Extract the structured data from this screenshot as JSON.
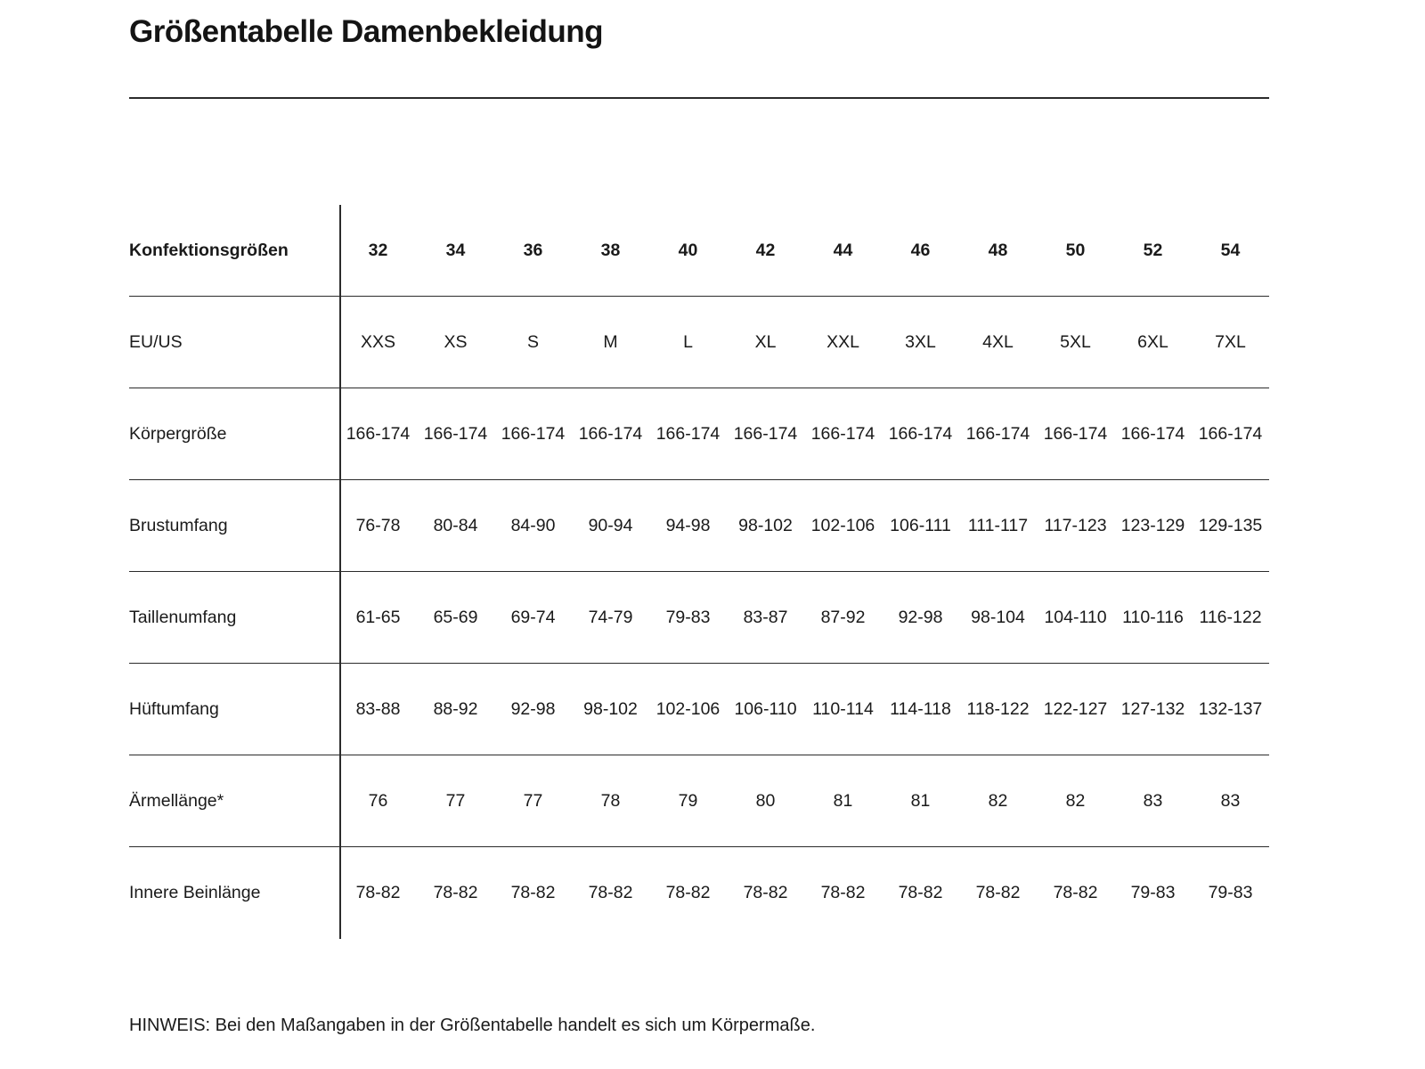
{
  "page": {
    "title": "Größentabelle Damenbekleidung",
    "note": "HINWEIS: Bei den Maßangaben in der Größentabelle handelt es sich um Körpermaße."
  },
  "ui_colors": {
    "text": "#1a1a1a",
    "line": "#2b2b2b",
    "background": "#ffffff"
  },
  "chart_data": {
    "type": "table",
    "header": {
      "label": "Konfektionsgrößen",
      "values": [
        "32",
        "34",
        "36",
        "38",
        "40",
        "42",
        "44",
        "46",
        "48",
        "50",
        "52",
        "54"
      ]
    },
    "rows": [
      {
        "label": "EU/US",
        "values": [
          "XXS",
          "XS",
          "S",
          "M",
          "L",
          "XL",
          "XXL",
          "3XL",
          "4XL",
          "5XL",
          "6XL",
          "7XL"
        ]
      },
      {
        "label": "Körpergröße",
        "values": [
          "166-174",
          "166-174",
          "166-174",
          "166-174",
          "166-174",
          "166-174",
          "166-174",
          "166-174",
          "166-174",
          "166-174",
          "166-174",
          "166-174"
        ]
      },
      {
        "label": "Brustumfang",
        "values": [
          "76-78",
          "80-84",
          "84-90",
          "90-94",
          "94-98",
          "98-102",
          "102-106",
          "106-111",
          "111-117",
          "117-123",
          "123-129",
          "129-135"
        ]
      },
      {
        "label": "Taillenumfang",
        "values": [
          "61-65",
          "65-69",
          "69-74",
          "74-79",
          "79-83",
          "83-87",
          "87-92",
          "92-98",
          "98-104",
          "104-110",
          "110-116",
          "116-122"
        ]
      },
      {
        "label": "Hüftumfang",
        "values": [
          "83-88",
          "88-92",
          "92-98",
          "98-102",
          "102-106",
          "106-110",
          "110-114",
          "114-118",
          "118-122",
          "122-127",
          "127-132",
          "132-137"
        ]
      },
      {
        "label": "Ärmellänge*",
        "values": [
          "76",
          "77",
          "77",
          "78",
          "79",
          "80",
          "81",
          "81",
          "82",
          "82",
          "83",
          "83"
        ]
      },
      {
        "label": "Innere Beinlänge",
        "values": [
          "78-82",
          "78-82",
          "78-82",
          "78-82",
          "78-82",
          "78-82",
          "78-82",
          "78-82",
          "78-82",
          "78-82",
          "79-83",
          "79-83"
        ]
      }
    ]
  }
}
